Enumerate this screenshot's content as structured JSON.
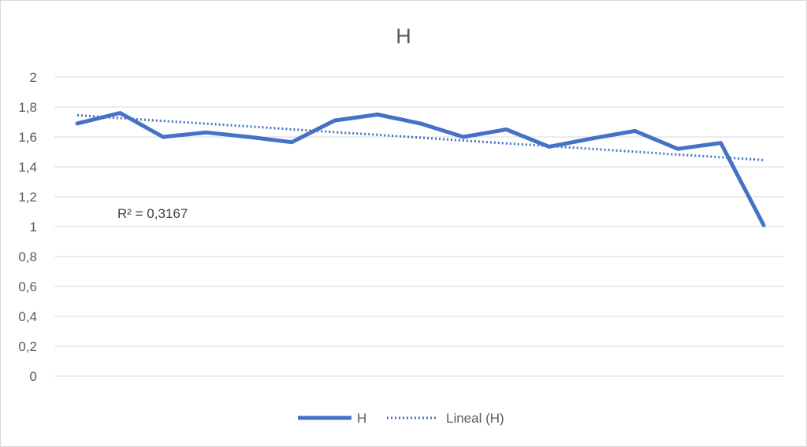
{
  "chart_data": {
    "type": "line",
    "title": "H",
    "xlabel": "",
    "ylabel": "",
    "ylim": [
      0,
      2
    ],
    "y_ticks": [
      "0",
      "0,2",
      "0,4",
      "0,6",
      "0,8",
      "1",
      "1,2",
      "1,4",
      "1,6",
      "1,8",
      "2"
    ],
    "y_tick_values": [
      0,
      0.2,
      0.4,
      0.6,
      0.8,
      1.0,
      1.2,
      1.4,
      1.6,
      1.8,
      2.0
    ],
    "grid": true,
    "legend_position": "bottom",
    "series": [
      {
        "name": "H",
        "style": "solid",
        "color": "#4472C4",
        "values": [
          1.69,
          1.76,
          1.6,
          1.63,
          1.6,
          1.565,
          1.71,
          1.75,
          1.69,
          1.6,
          1.65,
          1.535,
          1.59,
          1.64,
          1.52,
          1.56,
          1.01
        ]
      },
      {
        "name": "Lineal (H)",
        "style": "dotted",
        "color": "#4472C4",
        "values": [
          1.745,
          1.726,
          1.707,
          1.689,
          1.67,
          1.651,
          1.632,
          1.614,
          1.595,
          1.576,
          1.557,
          1.539,
          1.52,
          1.501,
          1.482,
          1.464,
          1.445
        ]
      }
    ],
    "annotation": "R² = 0,3167"
  }
}
